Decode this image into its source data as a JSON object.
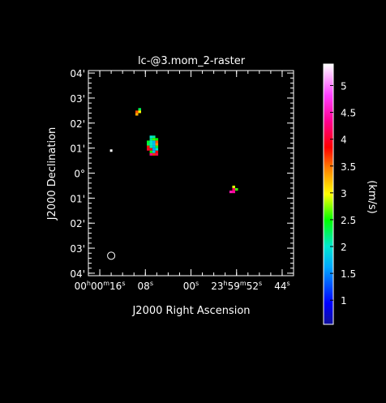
{
  "chart_data": {
    "type": "heatmap",
    "title": "lc-@3.mom_2-raster",
    "xlabel": "J2000 Right Ascension",
    "ylabel": "J2000 Declination",
    "x_ticks": [
      {
        "value": 16,
        "parts": [
          {
            "t": "00"
          },
          {
            "t": "h",
            "sup": true
          },
          {
            "t": "00"
          },
          {
            "t": "m",
            "sup": true
          },
          {
            "t": "16"
          },
          {
            "t": "s",
            "sup": true
          }
        ]
      },
      {
        "value": 8,
        "parts": [
          {
            "t": "08"
          },
          {
            "t": "s",
            "sup": true
          }
        ]
      },
      {
        "value": 0,
        "parts": [
          {
            "t": "00"
          },
          {
            "t": "s",
            "sup": true
          }
        ]
      },
      {
        "value": -8,
        "parts": [
          {
            "t": "23"
          },
          {
            "t": "h",
            "sup": true
          },
          {
            "t": "59"
          },
          {
            "t": "m",
            "sup": true
          },
          {
            "t": "52"
          },
          {
            "t": "s",
            "sup": true
          }
        ]
      },
      {
        "value": -16,
        "parts": [
          {
            "t": "44"
          },
          {
            "t": "s",
            "sup": true
          }
        ]
      }
    ],
    "y_ticks": [
      {
        "value": 4,
        "label": "04'"
      },
      {
        "value": 3,
        "label": "03'"
      },
      {
        "value": 2,
        "label": "02'"
      },
      {
        "value": 1,
        "label": "01'"
      },
      {
        "value": 0,
        "label": "0°"
      },
      {
        "value": -1,
        "label": "01'"
      },
      {
        "value": -2,
        "label": "02'"
      },
      {
        "value": -3,
        "label": "03'"
      },
      {
        "value": -4,
        "label": "04'"
      }
    ],
    "xlim": [
      18,
      -18
    ],
    "ylim": [
      -4.1,
      4.1
    ],
    "cells": [
      {
        "x": 9.5,
        "y": 2.45,
        "v": 3.6
      },
      {
        "x": 9.0,
        "y": 2.55,
        "v": 2.3
      },
      {
        "x": 9.5,
        "y": 2.35,
        "v": 3.3
      },
      {
        "x": 9.0,
        "y": 2.45,
        "v": 3.0
      },
      {
        "x": 7.0,
        "y": 1.45,
        "v": 2.0
      },
      {
        "x": 6.5,
        "y": 1.45,
        "v": 2.1
      },
      {
        "x": 7.0,
        "y": 1.35,
        "v": 2.2
      },
      {
        "x": 6.5,
        "y": 1.35,
        "v": 2.6
      },
      {
        "x": 6.0,
        "y": 1.35,
        "v": 2.5
      },
      {
        "x": 7.5,
        "y": 1.25,
        "v": 2.4
      },
      {
        "x": 7.0,
        "y": 1.25,
        "v": 2.0
      },
      {
        "x": 6.5,
        "y": 1.25,
        "v": 1.7
      },
      {
        "x": 6.0,
        "y": 1.25,
        "v": 3.6
      },
      {
        "x": 7.5,
        "y": 1.15,
        "v": 2.3
      },
      {
        "x": 7.0,
        "y": 1.15,
        "v": 2.0
      },
      {
        "x": 6.5,
        "y": 1.15,
        "v": 1.8
      },
      {
        "x": 6.0,
        "y": 1.15,
        "v": 3.4
      },
      {
        "x": 7.5,
        "y": 1.05,
        "v": 3.8
      },
      {
        "x": 7.0,
        "y": 1.05,
        "v": 2.1
      },
      {
        "x": 6.5,
        "y": 1.05,
        "v": 1.7
      },
      {
        "x": 6.0,
        "y": 1.05,
        "v": 2.4
      },
      {
        "x": 7.5,
        "y": 0.95,
        "v": 4.0
      },
      {
        "x": 7.0,
        "y": 0.95,
        "v": 3.8
      },
      {
        "x": 6.5,
        "y": 0.95,
        "v": 1.6
      },
      {
        "x": 6.0,
        "y": 0.95,
        "v": 2.0
      },
      {
        "x": 7.0,
        "y": 0.85,
        "v": 2.5
      },
      {
        "x": 6.5,
        "y": 0.85,
        "v": 1.8
      },
      {
        "x": 6.0,
        "y": 0.85,
        "v": 3.9
      },
      {
        "x": 7.0,
        "y": 0.75,
        "v": 4.3
      },
      {
        "x": 6.5,
        "y": 0.75,
        "v": 3.7
      },
      {
        "x": 6.0,
        "y": 0.75,
        "v": 4.1
      },
      {
        "x": -7.5,
        "y": -0.55,
        "v": 2.9
      },
      {
        "x": -7.5,
        "y": -0.65,
        "v": 4.2
      },
      {
        "x": -8.0,
        "y": -0.65,
        "v": 2.6
      },
      {
        "x": -7.5,
        "y": -0.75,
        "v": 4.4
      },
      {
        "x": -7.0,
        "y": -0.75,
        "v": 4.5
      }
    ],
    "colorbar": {
      "label": "(km/s)",
      "ticks": [
        1,
        1.5,
        2,
        2.5,
        3,
        3.5,
        4,
        4.5,
        5
      ],
      "range": [
        0.55,
        5.4
      ]
    },
    "markers": [
      {
        "name": "reference-dot",
        "x": 14.0,
        "y": 0.9
      },
      {
        "name": "beam-ellipse",
        "x": 14.0,
        "y": -3.3
      }
    ]
  }
}
